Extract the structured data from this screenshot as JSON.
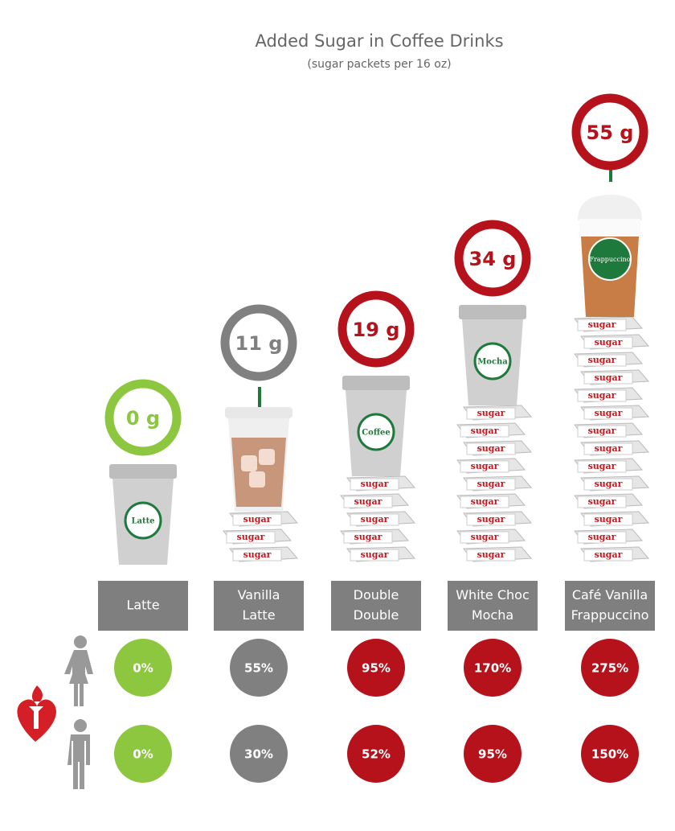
{
  "header": {
    "title": "Added Sugar in Coffee Drinks",
    "subtitle": "(sugar packets per 16 oz)"
  },
  "packet_label": "sugar",
  "drinks": [
    {
      "name": [
        "Latte"
      ],
      "sugar": "0 g",
      "packets": 0,
      "cup_style": "hot",
      "cup_label": "Latte",
      "color": "#8dc63f",
      "women": "0%",
      "men": "0%"
    },
    {
      "name": [
        "Vanilla",
        "Latte"
      ],
      "sugar": "11 g",
      "packets": 3,
      "cup_style": "iced",
      "color": "#808080",
      "women": "55%",
      "men": "30%"
    },
    {
      "name": [
        "Double",
        "Double"
      ],
      "sugar": "19 g",
      "packets": 5,
      "cup_style": "hot",
      "cup_label": "Coffee",
      "color": "#b5121b",
      "women": "95%",
      "men": "52%"
    },
    {
      "name": [
        "White Choc",
        "Mocha"
      ],
      "sugar": "34 g",
      "packets": 9,
      "cup_style": "hot",
      "cup_label": "Mocha",
      "color": "#b5121b",
      "women": "170%",
      "men": "95%"
    },
    {
      "name": [
        "Café Vanilla",
        "Frappuccino"
      ],
      "sugar": "55 g",
      "packets": 14,
      "cup_style": "frappe",
      "cup_label": "Frappuccino",
      "color": "#b5121b",
      "women": "275%",
      "men": "150%"
    }
  ]
}
